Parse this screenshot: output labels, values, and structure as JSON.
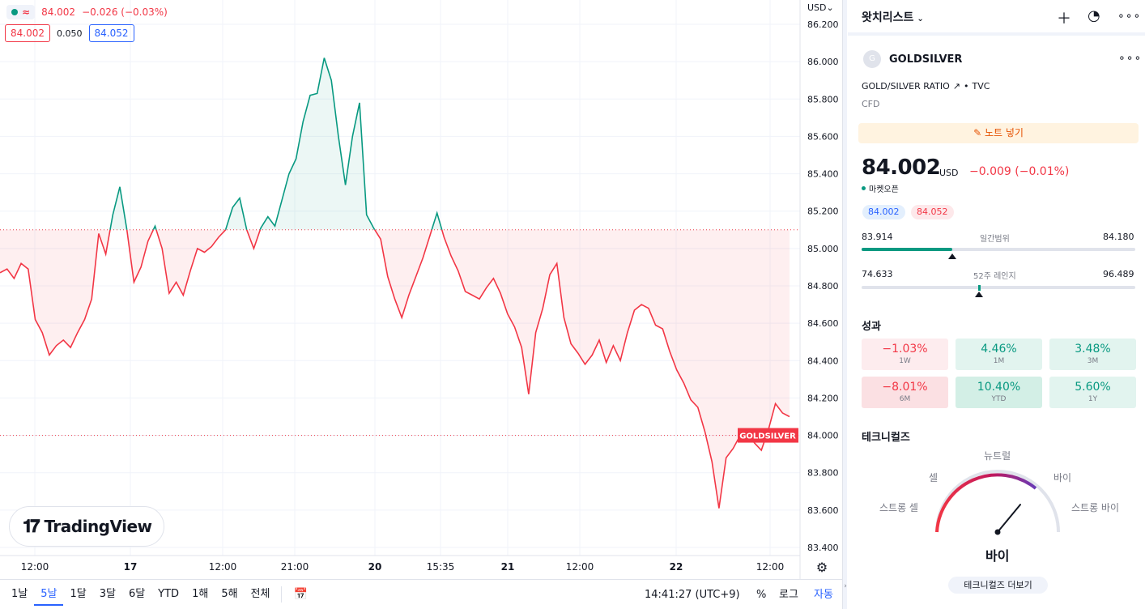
{
  "chart": {
    "legend": {
      "price": "84.002",
      "change": "−0.026 (−0.03%)",
      "bid": "84.002",
      "spread": "0.050",
      "ask": "84.052"
    },
    "currency": "USD",
    "symbol_tag": "GOLDSILVER",
    "y_ticks": [
      "86.200",
      "86.000",
      "85.800",
      "85.600",
      "85.400",
      "85.200",
      "85.000",
      "84.800",
      "84.600",
      "84.400",
      "84.200",
      "84.000",
      "83.800",
      "83.600",
      "83.400"
    ],
    "x_ticks": [
      "12:00",
      "17",
      "12:00",
      "21:00",
      "20",
      "15:35",
      "21",
      "12:00",
      "22",
      "12:00"
    ],
    "x_ticks_bold": [
      false,
      true,
      false,
      false,
      true,
      false,
      true,
      false,
      true,
      false
    ],
    "baseline_price": 85.1,
    "current_price": 84.0,
    "ylim": [
      83.4,
      86.2
    ],
    "up_color": "#089981",
    "down_color": "#f23645",
    "logo_text": "TradingView",
    "series": [
      84.87,
      84.89,
      84.84,
      84.92,
      84.89,
      84.62,
      84.55,
      84.43,
      84.48,
      84.51,
      84.47,
      84.55,
      84.62,
      84.73,
      85.08,
      84.97,
      85.18,
      85.33,
      85.1,
      84.82,
      84.9,
      85.04,
      85.12,
      85.0,
      84.76,
      84.82,
      84.75,
      84.88,
      85.0,
      84.98,
      85.01,
      85.06,
      85.1,
      85.22,
      85.27,
      85.1,
      85.0,
      85.11,
      85.17,
      85.12,
      85.26,
      85.4,
      85.48,
      85.68,
      85.82,
      85.83,
      86.02,
      85.9,
      85.6,
      85.34,
      85.6,
      85.78,
      85.18,
      85.11,
      85.05,
      84.85,
      84.73,
      84.63,
      84.75,
      84.85,
      84.95,
      85.07,
      85.19,
      85.06,
      84.96,
      84.88,
      84.77,
      84.75,
      84.73,
      84.79,
      84.84,
      84.76,
      84.65,
      84.58,
      84.47,
      84.22,
      84.55,
      84.68,
      84.86,
      84.92,
      84.63,
      84.49,
      84.44,
      84.38,
      84.43,
      84.51,
      84.39,
      84.48,
      84.4,
      84.55,
      84.67,
      84.7,
      84.68,
      84.59,
      84.57,
      84.45,
      84.35,
      84.28,
      84.19,
      84.15,
      84.02,
      83.86,
      83.61,
      83.88,
      83.93,
      84.0,
      84.03,
      83.96,
      83.92,
      84.03,
      84.17,
      84.12,
      84.1
    ]
  },
  "bottom_bar": {
    "ranges": [
      "1날",
      "5날",
      "1달",
      "3달",
      "6달",
      "YTD",
      "1해",
      "5해",
      "전체"
    ],
    "active_range": 1,
    "clock": "14:41:27 (UTC+9)",
    "pct": "%",
    "log": "로그",
    "auto": "자동"
  },
  "watchlist": {
    "title": "왓치리스트",
    "symbol": "GOLDSILVER",
    "avatar_letter": "G",
    "description": "GOLD/SILVER RATIO",
    "exchange": "TVC",
    "type": "CFD",
    "note_button": "노트 넣기",
    "price": "84.002",
    "currency": "USD",
    "change": "−0.009 (−0.01%)",
    "market_status": "마켓오픈",
    "bid": "84.002",
    "ask": "84.052",
    "day_range": {
      "low": "83.914",
      "label": "일간범위",
      "high": "84.180",
      "position": 0.33
    },
    "week52_range": {
      "low": "74.633",
      "label": "52주 레인지",
      "high": "96.489",
      "position": 0.43
    },
    "performance_title": "성과",
    "performance": [
      {
        "value": "−1.03%",
        "period": "1W",
        "sign": "neg"
      },
      {
        "value": "4.46%",
        "period": "1M",
        "sign": "pos"
      },
      {
        "value": "3.48%",
        "period": "3M",
        "sign": "pos"
      },
      {
        "value": "−8.01%",
        "period": "6M",
        "sign": "neg"
      },
      {
        "value": "10.40%",
        "period": "YTD",
        "sign": "pos"
      },
      {
        "value": "5.60%",
        "period": "1Y",
        "sign": "pos"
      }
    ],
    "technicals_title": "테크니컬즈",
    "gauge": {
      "neutral": "뉴트럴",
      "sell": "셀",
      "buy": "바이",
      "strong_sell": "스트롱 셀",
      "strong_buy": "스트롱 바이",
      "result": "바이",
      "needle_value": 0.72
    },
    "technicals_button": "테크니컬즈 더보기"
  }
}
